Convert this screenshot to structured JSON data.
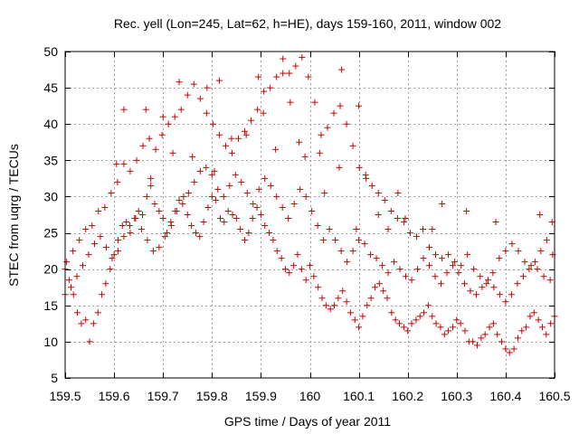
{
  "chart_data": {
    "type": "scatter",
    "title": "Rec. yell (Lon=245, Lat=62, h=HE), days 159-160, 2011, window 002",
    "xlabel": "GPS time / Days of year 2011",
    "ylabel": "STEC from uqrg / TECUs",
    "xlim": [
      159.5,
      160.5
    ],
    "ylim": [
      5,
      50
    ],
    "xticks": [
      159.5,
      159.6,
      159.7,
      159.8,
      159.9,
      160,
      160.1,
      160.2,
      160.3,
      160.4,
      160.5
    ],
    "xtick_labels": [
      "159.5",
      "159.6",
      "159.7",
      "159.8",
      "159.9",
      "160",
      "160.1",
      "160.2",
      "160.3",
      "160.4",
      "160.5"
    ],
    "yticks": [
      5,
      10,
      15,
      20,
      25,
      30,
      35,
      40,
      45,
      50
    ],
    "ytick_labels": [
      "5",
      "10",
      "15",
      "20",
      "25",
      "30",
      "35",
      "40",
      "45",
      "50"
    ],
    "grid": true,
    "marker": "plus",
    "colors": {
      "points": "#cc0000",
      "grid": "#a0a0a0",
      "frame": "#000000"
    },
    "series": [
      {
        "x": [
          159.5,
          159.508,
          159.517,
          159.525,
          159.533,
          159.542,
          159.55,
          159.558,
          159.567,
          159.575,
          159.583,
          159.592,
          159.6,
          159.608,
          159.617,
          159.625,
          159.633,
          159.642,
          159.65,
          159.658,
          159.667,
          159.675,
          159.683,
          159.692,
          159.7,
          159.708,
          159.717,
          159.725,
          159.733,
          159.742,
          159.75,
          159.758,
          159.767,
          159.775,
          159.783,
          159.792,
          159.8,
          159.808,
          159.817,
          159.825,
          159.833,
          159.842,
          159.85,
          159.858,
          159.867,
          159.875,
          159.883,
          159.892,
          159.9,
          159.908,
          159.917,
          159.925,
          159.933,
          159.942,
          159.95,
          159.958,
          159.967,
          159.975,
          159.983,
          159.992,
          160.0,
          160.008,
          160.017,
          160.025,
          160.033,
          160.042,
          160.05,
          160.058,
          160.067,
          160.075,
          160.083,
          160.092,
          160.1,
          160.108,
          160.117,
          160.125,
          160.133,
          160.142,
          160.15,
          160.158,
          160.167,
          160.175,
          160.183,
          160.192,
          160.2,
          160.208,
          160.217,
          160.225,
          160.233,
          160.242,
          160.25,
          160.258,
          160.267,
          160.275,
          160.283,
          160.292,
          160.3,
          160.308,
          160.317,
          160.325,
          160.333,
          160.342,
          160.35,
          160.358,
          160.367,
          160.375,
          160.383,
          160.392,
          160.4,
          160.408,
          160.417,
          160.425,
          160.433,
          160.442,
          160.45,
          160.458,
          160.467,
          160.475,
          160.483,
          160.492,
          160.5,
          159.5,
          159.512,
          159.524,
          159.536,
          159.548,
          159.56,
          159.572,
          159.584,
          159.596,
          159.608,
          159.62,
          159.632,
          159.644,
          159.656,
          159.668,
          159.68,
          159.692,
          159.704,
          159.716,
          159.728,
          159.74,
          159.752,
          159.764,
          159.776,
          159.788,
          159.8,
          159.812,
          159.824,
          159.836,
          159.848,
          159.86,
          159.872,
          159.884,
          159.896,
          159.908,
          159.92,
          159.932,
          159.944,
          159.956,
          159.968,
          159.98,
          159.992,
          160.004,
          160.016,
          160.028,
          160.04,
          160.052,
          160.064,
          160.076,
          160.088,
          160.1,
          160.112,
          160.124,
          160.136,
          160.148,
          160.16,
          160.172,
          160.184,
          160.196,
          160.208,
          160.22,
          160.232,
          160.244,
          160.256,
          160.268,
          160.28,
          160.292,
          160.304,
          160.316,
          160.328,
          160.34,
          160.352,
          160.364,
          160.376,
          160.388,
          160.4,
          160.412,
          160.424,
          160.436,
          160.448,
          160.46,
          160.472,
          160.484,
          160.496,
          159.503,
          159.516,
          159.529,
          159.542,
          159.555,
          159.568,
          159.581,
          159.594,
          159.607,
          159.62,
          159.633,
          159.646,
          159.659,
          159.672,
          159.685,
          159.698,
          159.711,
          159.724,
          159.737,
          159.75,
          159.763,
          159.776,
          159.789,
          159.802,
          159.815,
          159.828,
          159.841,
          159.854,
          159.867,
          159.88,
          159.893,
          159.906,
          159.919,
          159.932,
          159.945,
          159.958,
          159.971,
          159.984,
          159.997,
          160.01,
          160.023,
          160.036,
          160.049,
          160.062,
          160.075,
          160.088,
          160.101,
          160.114,
          160.127,
          160.14,
          160.153,
          160.166,
          160.179,
          160.192,
          160.205,
          160.218,
          160.231,
          160.244,
          160.257,
          160.27,
          160.283,
          160.296,
          160.309,
          160.322,
          160.335,
          160.348,
          160.361,
          160.374,
          160.387,
          160.4,
          160.413,
          160.426,
          160.439,
          160.452,
          160.465,
          160.478,
          160.491,
          159.605,
          159.62,
          159.665,
          159.675,
          159.7,
          159.72,
          159.733,
          159.76,
          159.79,
          159.805,
          159.815,
          159.84,
          159.87,
          159.895,
          159.905,
          159.93,
          159.945,
          159.96,
          159.978,
          159.99,
          160.02,
          160.03,
          160.06,
          160.065,
          160.095,
          160.1,
          160.115,
          160.14,
          160.16,
          160.18,
          160.195,
          160.25,
          160.27,
          160.32,
          160.38,
          160.47,
          160.495
        ],
        "y": [
          20.0,
          18.5,
          16.5,
          14.0,
          12.5,
          13.0,
          10.0,
          12.5,
          14.0,
          16.5,
          18.0,
          20.0,
          22.0,
          24.0,
          26.0,
          26.5,
          25.0,
          27.0,
          28.0,
          27.5,
          30.0,
          31.5,
          29.0,
          28.0,
          27.0,
          25.0,
          26.0,
          28.0,
          29.5,
          30.0,
          27.5,
          26.0,
          25.0,
          24.5,
          26.5,
          28.5,
          30.0,
          29.5,
          27.0,
          26.5,
          28.0,
          27.5,
          27.0,
          25.5,
          24.0,
          25.0,
          27.0,
          28.5,
          27.5,
          26.0,
          25.0,
          24.0,
          22.5,
          21.5,
          20.0,
          19.5,
          20.5,
          22.0,
          20.0,
          18.5,
          20.5,
          19.0,
          17.5,
          16.0,
          15.0,
          14.5,
          15.0,
          16.0,
          17.0,
          15.5,
          14.0,
          13.0,
          12.0,
          13.5,
          15.0,
          16.0,
          17.5,
          18.0,
          17.0,
          16.0,
          14.0,
          13.0,
          12.5,
          12.0,
          11.5,
          12.5,
          13.0,
          13.5,
          14.0,
          15.0,
          13.5,
          12.5,
          12.0,
          11.0,
          11.5,
          12.0,
          13.0,
          12.5,
          11.5,
          10.0,
          10.0,
          9.5,
          10.5,
          11.0,
          12.0,
          12.5,
          11.0,
          10.0,
          9.0,
          8.5,
          9.0,
          10.5,
          11.5,
          12.0,
          13.5,
          14.0,
          13.0,
          12.0,
          11.0,
          12.5,
          13.5,
          16.5,
          17.5,
          19.0,
          20.5,
          22.0,
          23.5,
          24.5,
          23.0,
          21.5,
          22.5,
          24.5,
          26.0,
          27.0,
          25.5,
          24.0,
          22.5,
          23.0,
          24.5,
          26.5,
          28.0,
          29.0,
          30.5,
          32.0,
          33.5,
          34.0,
          33.0,
          31.0,
          30.0,
          31.5,
          33.0,
          32.0,
          30.5,
          29.0,
          31.0,
          32.5,
          31.5,
          30.0,
          28.5,
          27.0,
          29.0,
          31.0,
          30.0,
          28.0,
          26.0,
          24.0,
          25.5,
          24.0,
          22.5,
          21.0,
          22.5,
          24.0,
          23.5,
          22.0,
          21.5,
          20.5,
          19.5,
          21.0,
          20.0,
          19.0,
          18.5,
          20.0,
          21.5,
          20.5,
          19.0,
          18.0,
          19.5,
          20.5,
          19.5,
          18.0,
          17.0,
          16.5,
          17.5,
          18.5,
          17.5,
          16.5,
          15.5,
          16.5,
          18.0,
          19.0,
          20.0,
          21.0,
          22.5,
          24.0,
          22.0,
          21.0,
          22.5,
          24.0,
          25.5,
          26.0,
          28.0,
          28.5,
          30.5,
          32.0,
          34.5,
          33.5,
          35.0,
          37.0,
          38.0,
          36.5,
          38.5,
          40.0,
          41.0,
          42.0,
          44.0,
          45.5,
          43.5,
          41.5,
          40.0,
          38.5,
          37.0,
          36.0,
          38.0,
          39.0,
          40.5,
          42.0,
          44.5,
          45.0,
          46.5,
          49.0,
          47.0,
          48.0,
          49.2,
          46.5,
          43.0,
          38.5,
          39.5,
          41.5,
          42.5,
          40.0,
          37.0,
          34.0,
          33.0,
          31.5,
          30.5,
          29.5,
          28.0,
          27.0,
          26.5,
          25.0,
          24.5,
          25.5,
          23.0,
          22.0,
          21.5,
          22.0,
          21.0,
          20.5,
          22.0,
          20.0,
          19.0,
          18.0,
          19.5,
          21.5,
          22.5,
          23.5,
          22.5,
          21.0,
          20.5,
          20.0,
          19.0,
          18.5,
          34.5,
          42.0,
          42.0,
          32.5,
          41.0,
          36.0,
          45.8,
          35.5,
          45.0,
          33.5,
          46.0,
          38.0,
          38.5,
          46.5,
          41.5,
          36.5,
          47.0,
          43.0,
          37.5,
          35.5,
          36.0,
          30.5,
          34.0,
          47.5,
          25.5,
          42.5,
          32.5,
          27.5,
          25.5,
          30.5,
          27.0,
          25.5,
          29.0,
          28.0,
          26.5,
          27.5,
          26.5
        ]
      }
    ]
  }
}
